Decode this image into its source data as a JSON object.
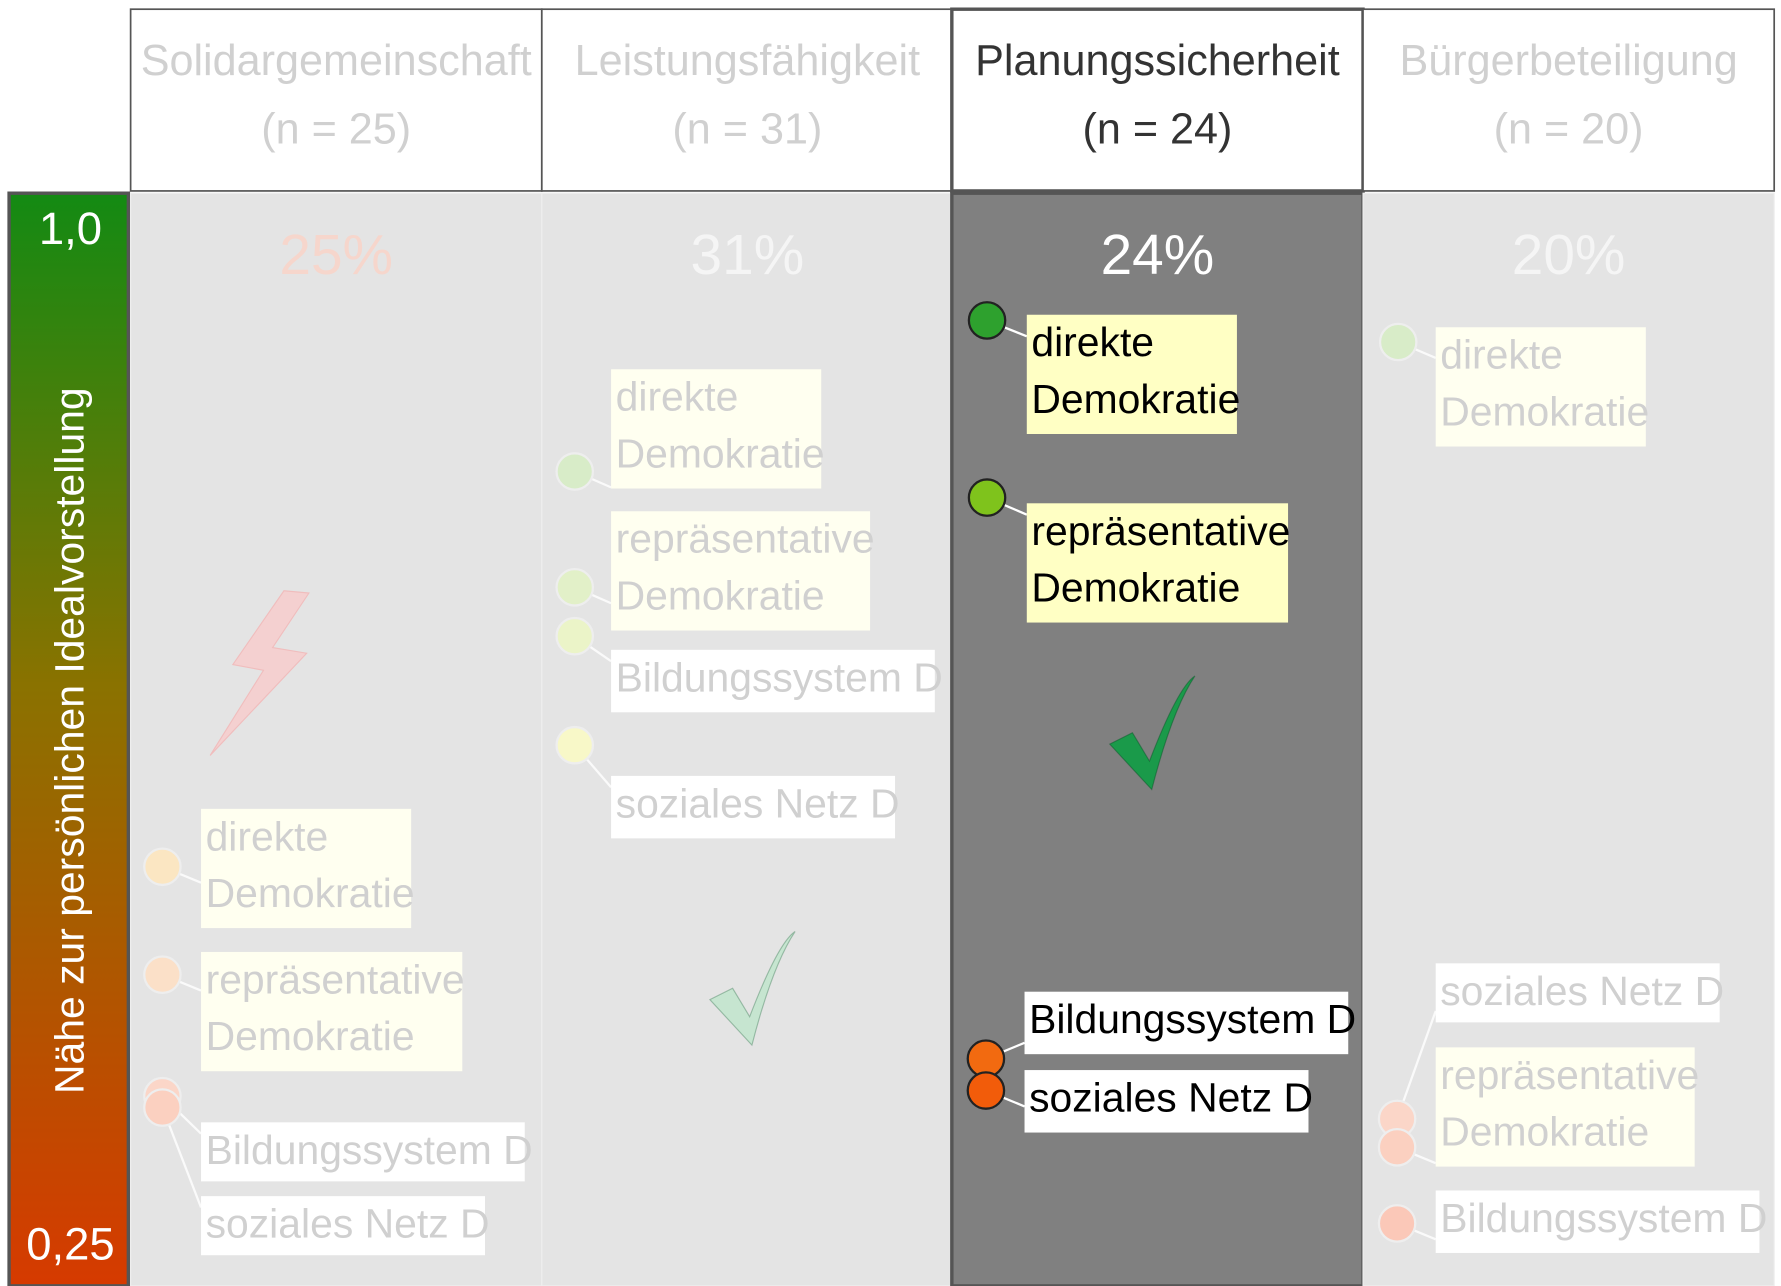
{
  "axis": {
    "title": "Nähe zur persönlichen Idealvorstellung",
    "top": "1,0",
    "bottom": "0,25"
  },
  "columns": [
    {
      "title": "Solidargemeinschaft",
      "n": "(n = 25)",
      "share": "25%",
      "items": [
        {
          "label": [
            "direkte",
            "Demokratie"
          ]
        },
        {
          "label": [
            "repräsentative",
            "Demokratie"
          ]
        },
        {
          "label": [
            "Bildungssystem D"
          ]
        },
        {
          "label": [
            "soziales Netz D"
          ]
        }
      ]
    },
    {
      "title": "Leistungsfähigkeit",
      "n": "(n = 31)",
      "share": "31%",
      "items": [
        {
          "label": [
            "direkte",
            "Demokratie"
          ]
        },
        {
          "label": [
            "repräsentative",
            "Demokratie"
          ]
        },
        {
          "label": [
            "Bildungssystem D"
          ]
        },
        {
          "label": [
            "soziales Netz D"
          ]
        }
      ]
    },
    {
      "title": "Planungssicherheit",
      "n": "(n = 24)",
      "share": "24%",
      "items": [
        {
          "label": [
            "direkte",
            "Demokratie"
          ]
        },
        {
          "label": [
            "repräsentative",
            "Demokratie"
          ]
        },
        {
          "label": [
            "Bildungssystem D"
          ]
        },
        {
          "label": [
            "soziales Netz D"
          ]
        }
      ]
    },
    {
      "title": "Bürgerbeteiligung",
      "n": "(n = 20)",
      "share": "20%",
      "items": [
        {
          "label": [
            "direkte",
            "Demokratie"
          ]
        },
        {
          "label": [
            "soziales Netz D"
          ]
        },
        {
          "label": [
            "repräsentative",
            "Demokratie"
          ]
        },
        {
          "label": [
            "Bildungssystem D"
          ]
        }
      ]
    }
  ]
}
